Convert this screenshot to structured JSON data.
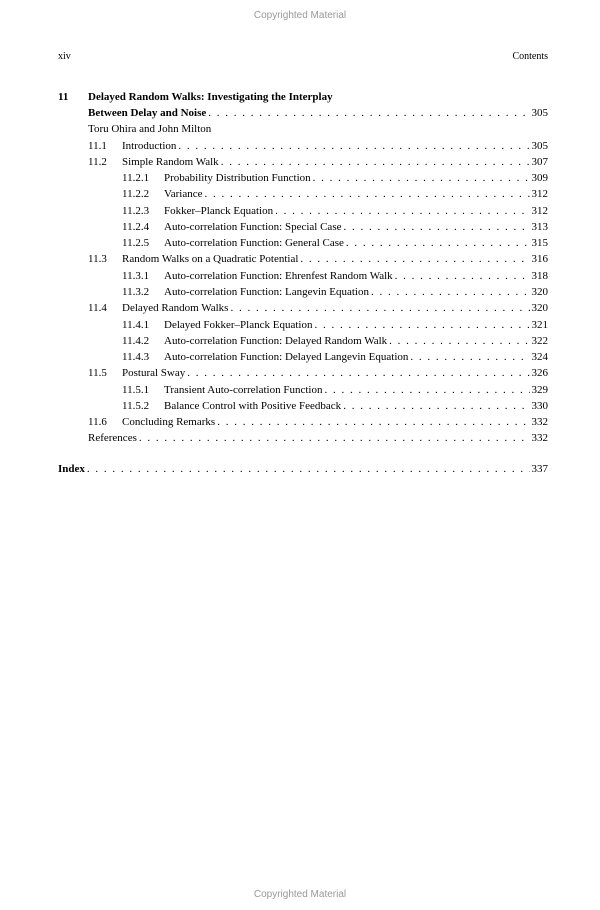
{
  "copyright": "Copyrighted Material",
  "runhead": {
    "left": "xiv",
    "right": "Contents"
  },
  "chapter": {
    "num": "11",
    "title_line1": "Delayed  Random  Walks:  Investigating  the  Interplay",
    "title_line2": "Between Delay and Noise",
    "page": "305",
    "authors": "Toru Ohira and John Milton"
  },
  "sections": [
    {
      "num": "11.1",
      "label": "Introduction",
      "page": "305",
      "subs": []
    },
    {
      "num": "11.2",
      "label": "Simple Random Walk",
      "page": "307",
      "subs": [
        {
          "num": "11.2.1",
          "label": "Probability Distribution Function",
          "page": "309"
        },
        {
          "num": "11.2.2",
          "label": "Variance",
          "page": "312"
        },
        {
          "num": "11.2.3",
          "label": "Fokker–Planck Equation",
          "page": "312"
        },
        {
          "num": "11.2.4",
          "label": "Auto-correlation Function: Special Case",
          "page": "313"
        },
        {
          "num": "11.2.5",
          "label": "Auto-correlation Function: General Case",
          "page": "315"
        }
      ]
    },
    {
      "num": "11.3",
      "label": "Random Walks on a Quadratic Potential",
      "page": "316",
      "subs": [
        {
          "num": "11.3.1",
          "label": "Auto-correlation Function: Ehrenfest Random Walk",
          "page": "318"
        },
        {
          "num": "11.3.2",
          "label": "Auto-correlation Function: Langevin Equation",
          "page": "320"
        }
      ]
    },
    {
      "num": "11.4",
      "label": "Delayed Random Walks",
      "page": "320",
      "subs": [
        {
          "num": "11.4.1",
          "label": "Delayed Fokker–Planck Equation",
          "page": "321"
        },
        {
          "num": "11.4.2",
          "label": "Auto-correlation Function: Delayed Random Walk",
          "page": "322"
        },
        {
          "num": "11.4.3",
          "label": "Auto-correlation Function: Delayed Langevin Equation",
          "page": "324"
        }
      ]
    },
    {
      "num": "11.5",
      "label": "Postural Sway",
      "page": "326",
      "subs": [
        {
          "num": "11.5.1",
          "label": "Transient Auto-correlation Function",
          "page": "329"
        },
        {
          "num": "11.5.2",
          "label": "Balance Control with Positive Feedback",
          "page": "330"
        }
      ]
    },
    {
      "num": "11.6",
      "label": "Concluding Remarks",
      "page": "332",
      "subs": []
    }
  ],
  "references": {
    "label": "References",
    "page": "332"
  },
  "index": {
    "label": "Index",
    "page": "337"
  }
}
